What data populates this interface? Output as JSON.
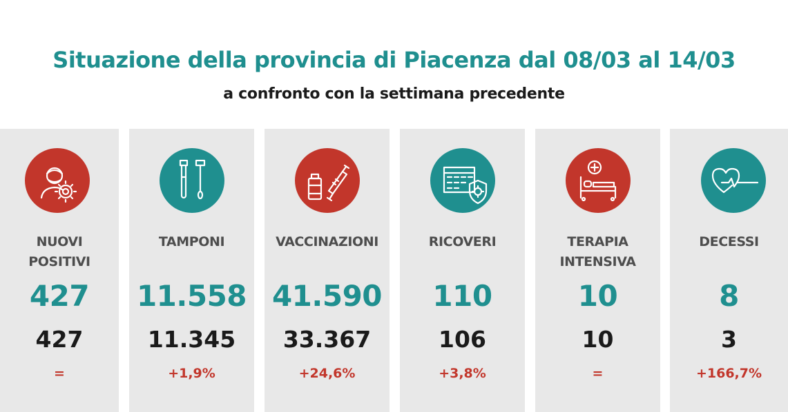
{
  "header": {
    "title": "Situazione della provincia di Piacenza dal 08/03 al 14/03",
    "subtitle": "a confronto con la settimana precedente"
  },
  "colors": {
    "teal": "#1f8f8f",
    "red": "#c2362b",
    "card_bg": "#e8e8e8"
  },
  "cards": [
    {
      "icon": "person-virus-icon",
      "label_line1": "NUOVI",
      "label_line2": "POSITIVI",
      "current": "427",
      "previous": "427",
      "change": "="
    },
    {
      "icon": "test-tubes-icon",
      "label_line1": "TAMPONI",
      "label_line2": "",
      "current": "11.558",
      "previous": "11.345",
      "change": "+1,9%"
    },
    {
      "icon": "vaccine-icon",
      "label_line1": "VACCINAZIONI",
      "label_line2": "",
      "current": "41.590",
      "previous": "33.367",
      "change": "+24,6%"
    },
    {
      "icon": "hospital-icon",
      "label_line1": "RICOVERI",
      "label_line2": "",
      "current": "110",
      "previous": "106",
      "change": "+3,8%"
    },
    {
      "icon": "hospital-bed-icon",
      "label_line1": "TERAPIA",
      "label_line2": "INTENSIVA",
      "current": "10",
      "previous": "10",
      "change": "="
    },
    {
      "icon": "heart-monitor-icon",
      "label_line1": "DECESSI",
      "label_line2": "",
      "current": "8",
      "previous": "3",
      "change": "+166,7%"
    }
  ]
}
